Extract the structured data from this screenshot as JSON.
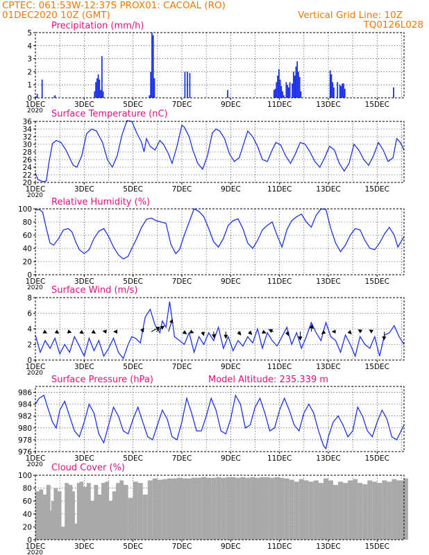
{
  "header": {
    "line1_left": "CPTEC:   061:53W-12:37S   PROX01: CACOAL (RO)",
    "line2_left": "01DEC2020 10Z (GMT)",
    "line2_right": "Vertical Grid Line: 10Z",
    "line3_right": "TQ0126L028"
  },
  "colors": {
    "title": "#e01080",
    "header": "#f07800",
    "series": "#1c32e6",
    "cloud": "#a9a9a9",
    "arrow": "#000000",
    "grid": "#000000"
  },
  "x_tick_labels": [
    "1DEC",
    "3DEC",
    "5DEC",
    "7DEC",
    "9DEC",
    "11DEC",
    "13DEC",
    "15DEC"
  ],
  "x_tick_year": "2020",
  "chart_data": [
    {
      "type": "bar",
      "title": "Precipitation (mm/h)",
      "ylim": [
        0,
        5
      ],
      "yticks": [
        0,
        1,
        2,
        3,
        4,
        5
      ],
      "x_unit": "days since 01DEC2020 10Z",
      "x": [
        0.0,
        0.05,
        0.25,
        0.75,
        0.78,
        2.4,
        2.45,
        2.5,
        2.55,
        2.6,
        2.65,
        2.7,
        2.75,
        4.65,
        4.7,
        4.75,
        4.8,
        4.85,
        6.1,
        6.2,
        6.3,
        7.85,
        9.75,
        9.8,
        9.85,
        9.9,
        9.95,
        10.0,
        10.05,
        10.1,
        10.15,
        10.25,
        10.3,
        10.35,
        10.4,
        10.5,
        10.55,
        10.6,
        10.65,
        10.7,
        10.75,
        10.8,
        10.85,
        12.05,
        12.1,
        12.15,
        12.2,
        12.35,
        12.45,
        12.5,
        12.55,
        12.6,
        12.65,
        14.65
      ],
      "values": [
        0.1,
        0.3,
        1.4,
        0.1,
        0.2,
        0.5,
        1.2,
        1.5,
        1.8,
        1.4,
        0.6,
        3.2,
        0.5,
        0.2,
        2.0,
        5.0,
        4.8,
        1.5,
        2.0,
        2.0,
        1.9,
        0.6,
        0.6,
        0.7,
        1.2,
        1.7,
        2.2,
        1.4,
        0.9,
        0.5,
        0.2,
        1.2,
        1.0,
        0.8,
        1.2,
        1.1,
        2.0,
        1.7,
        2.4,
        2.8,
        2.0,
        1.6,
        0.5,
        2.1,
        1.8,
        1.2,
        0.8,
        1.2,
        1.0,
        0.9,
        1.1,
        1.1,
        0.7,
        0.8
      ]
    },
    {
      "type": "line",
      "title": "Surface Temperature (nC)",
      "ylim": [
        20,
        36
      ],
      "yticks": [
        20,
        22,
        24,
        26,
        28,
        30,
        32,
        34,
        36
      ],
      "x_unit": "days since 01DEC2020 10Z",
      "x": [
        0.0,
        0.1,
        0.3,
        0.45,
        0.55,
        0.7,
        0.85,
        1.05,
        1.25,
        1.4,
        1.55,
        1.7,
        1.9,
        2.1,
        2.3,
        2.5,
        2.75,
        2.95,
        3.15,
        3.35,
        3.55,
        3.75,
        3.95,
        4.15,
        4.35,
        4.45,
        4.55,
        4.7,
        4.9,
        5.1,
        5.25,
        5.45,
        5.6,
        5.8,
        6.0,
        6.1,
        6.3,
        6.45,
        6.65,
        6.85,
        7.05,
        7.25,
        7.4,
        7.55,
        7.75,
        7.95,
        8.15,
        8.35,
        8.55,
        8.7,
        8.9,
        9.1,
        9.3,
        9.5,
        9.7,
        9.85,
        10.05,
        10.25,
        10.45,
        10.65,
        10.85,
        11.05,
        11.25,
        11.45,
        11.65,
        11.85,
        12.05,
        12.25,
        12.45,
        12.65,
        12.85,
        13.05,
        13.25,
        13.45,
        13.65,
        13.85,
        14.05,
        14.25,
        14.45,
        14.65,
        14.8,
        14.95,
        15.1
      ],
      "values": [
        22.5,
        20.8,
        20.2,
        20.4,
        25.0,
        30.2,
        31.0,
        30.5,
        28.5,
        26.5,
        24.5,
        24.0,
        27.0,
        32.8,
        34.0,
        33.5,
        30.5,
        26.0,
        24.0,
        27.0,
        32.5,
        36.2,
        36.0,
        33.0,
        30.5,
        28.0,
        31.5,
        29.5,
        28.5,
        31.0,
        30.0,
        27.5,
        25.0,
        29.5,
        35.0,
        34.5,
        32.0,
        28.5,
        25.0,
        23.5,
        27.0,
        33.0,
        34.0,
        33.5,
        31.5,
        27.5,
        25.5,
        26.5,
        30.5,
        33.5,
        32.0,
        29.5,
        26.0,
        25.5,
        28.5,
        30.5,
        29.8,
        27.0,
        25.0,
        27.5,
        30.5,
        30.0,
        28.0,
        25.5,
        24.0,
        26.5,
        29.5,
        28.5,
        25.0,
        23.0,
        25.0,
        30.0,
        28.5,
        26.0,
        24.5,
        27.0,
        30.5,
        28.5,
        25.5,
        26.5,
        31.5,
        30.5,
        28.5
      ]
    },
    {
      "type": "line",
      "title": "Relative Humidity (%)",
      "ylim": [
        0,
        100
      ],
      "yticks": [
        0,
        20,
        40,
        60,
        80,
        100
      ],
      "x_unit": "days since 01DEC2020 10Z",
      "x": [
        0.0,
        0.15,
        0.3,
        0.45,
        0.6,
        0.75,
        0.95,
        1.15,
        1.35,
        1.5,
        1.65,
        1.8,
        2.0,
        2.2,
        2.4,
        2.6,
        2.8,
        3.0,
        3.2,
        3.4,
        3.6,
        3.8,
        3.95,
        4.15,
        4.35,
        4.55,
        4.75,
        4.95,
        5.15,
        5.35,
        5.55,
        5.75,
        5.9,
        6.1,
        6.3,
        6.5,
        6.7,
        6.9,
        7.1,
        7.3,
        7.5,
        7.7,
        7.9,
        8.1,
        8.3,
        8.5,
        8.7,
        8.9,
        9.1,
        9.3,
        9.5,
        9.7,
        9.9,
        10.1,
        10.3,
        10.5,
        10.7,
        10.9,
        11.1,
        11.3,
        11.5,
        11.7,
        11.9,
        12.1,
        12.3,
        12.5,
        12.7,
        12.9,
        13.1,
        13.3,
        13.5,
        13.7,
        13.9,
        14.1,
        14.3,
        14.5,
        14.7,
        14.85,
        15.1
      ],
      "values": [
        98,
        99,
        95,
        70,
        48,
        45,
        55,
        68,
        70,
        65,
        50,
        38,
        32,
        38,
        55,
        66,
        70,
        58,
        42,
        30,
        24,
        28,
        40,
        55,
        72,
        84,
        86,
        82,
        80,
        78,
        46,
        32,
        38,
        60,
        80,
        100,
        96,
        88,
        70,
        50,
        42,
        55,
        75,
        82,
        85,
        70,
        48,
        40,
        52,
        68,
        75,
        80,
        60,
        42,
        68,
        82,
        88,
        92,
        80,
        72,
        90,
        100,
        99,
        70,
        48,
        35,
        45,
        60,
        70,
        68,
        52,
        40,
        38,
        48,
        62,
        72,
        60,
        42,
        58
      ]
    },
    {
      "type": "line",
      "title": "Surface Wind (m/s)",
      "ylim": [
        0,
        8
      ],
      "yticks": [
        0,
        2,
        4,
        6,
        8
      ],
      "x_unit": "days since 01DEC2020 10Z",
      "x": [
        0.0,
        0.2,
        0.4,
        0.6,
        0.8,
        1.0,
        1.2,
        1.4,
        1.6,
        1.8,
        2.0,
        2.2,
        2.4,
        2.6,
        2.8,
        3.0,
        3.2,
        3.4,
        3.6,
        3.8,
        3.95,
        4.1,
        4.3,
        4.5,
        4.7,
        4.9,
        5.1,
        5.2,
        5.35,
        5.5,
        5.7,
        5.9,
        6.1,
        6.3,
        6.5,
        6.7,
        6.9,
        7.1,
        7.3,
        7.5,
        7.7,
        7.9,
        8.1,
        8.3,
        8.5,
        8.7,
        8.9,
        9.1,
        9.3,
        9.5,
        9.7,
        9.9,
        10.1,
        10.3,
        10.5,
        10.7,
        10.9,
        11.1,
        11.3,
        11.5,
        11.7,
        11.9,
        12.1,
        12.3,
        12.5,
        12.7,
        12.9,
        13.1,
        13.3,
        13.5,
        13.7,
        13.9,
        14.1,
        14.3,
        14.5,
        14.7,
        14.9,
        15.1
      ],
      "values": [
        3.2,
        1.0,
        2.5,
        1.5,
        2.8,
        0.8,
        2.0,
        1.0,
        3.0,
        1.8,
        0.5,
        2.8,
        1.2,
        2.5,
        0.5,
        1.5,
        2.8,
        1.0,
        0.2,
        2.0,
        3.0,
        2.8,
        2.2,
        5.5,
        6.5,
        4.5,
        3.5,
        5.0,
        4.2,
        7.5,
        3.0,
        2.5,
        2.0,
        3.5,
        1.0,
        3.0,
        2.0,
        3.5,
        2.5,
        4.2,
        1.5,
        3.0,
        1.2,
        2.5,
        1.8,
        3.0,
        2.2,
        4.0,
        1.5,
        3.5,
        2.5,
        1.8,
        3.0,
        4.2,
        2.0,
        3.5,
        1.5,
        3.0,
        4.8,
        3.5,
        2.5,
        4.8,
        3.0,
        2.5,
        1.0,
        3.2,
        2.0,
        0.5,
        3.0,
        2.0,
        1.5,
        3.0,
        0.5,
        3.2,
        3.5,
        4.4,
        3.0,
        2.0
      ],
      "vectors": [
        {
          "x": 0.35,
          "u": 0.5,
          "v": -0.25
        },
        {
          "x": 0.85,
          "u": 0.45,
          "v": -0.3
        },
        {
          "x": 1.35,
          "u": 0.5,
          "v": -0.15
        },
        {
          "x": 1.85,
          "u": 0.5,
          "v": -0.35
        },
        {
          "x": 2.35,
          "u": 0.45,
          "v": -0.3
        },
        {
          "x": 2.9,
          "u": -0.55,
          "v": 0.1
        },
        {
          "x": 3.35,
          "u": -0.6,
          "v": 0.0
        },
        {
          "x": 4.35,
          "u": 0.4,
          "v": 0.6
        },
        {
          "x": 4.75,
          "u": 1.5,
          "v": 0.8
        },
        {
          "x": 4.95,
          "u": 1.4,
          "v": 1.0
        },
        {
          "x": 5.45,
          "u": 0.7,
          "v": 2.2
        },
        {
          "x": 6.05,
          "u": 0.6,
          "v": -0.4
        },
        {
          "x": 6.35,
          "u": 0.55,
          "v": -0.2
        },
        {
          "x": 6.85,
          "u": 0.2,
          "v": -0.7
        },
        {
          "x": 7.3,
          "u": 0.1,
          "v": -1.1
        },
        {
          "x": 7.8,
          "u": 0.0,
          "v": -1.2
        },
        {
          "x": 8.3,
          "u": 0.5,
          "v": -0.6
        },
        {
          "x": 8.75,
          "u": 0.5,
          "v": -0.5
        },
        {
          "x": 9.3,
          "u": 0.6,
          "v": -0.25
        },
        {
          "x": 9.75,
          "u": -0.8,
          "v": 0.35
        },
        {
          "x": 10.3,
          "u": 0.3,
          "v": -0.7
        },
        {
          "x": 10.85,
          "u": 0.0,
          "v": -1.5
        },
        {
          "x": 11.3,
          "u": 0.1,
          "v": 1.2
        },
        {
          "x": 11.85,
          "u": -0.5,
          "v": -0.4
        },
        {
          "x": 12.3,
          "u": -0.6,
          "v": 0.0
        },
        {
          "x": 12.85,
          "u": 0.4,
          "v": -0.4
        },
        {
          "x": 13.35,
          "u": -0.5,
          "v": 0.35
        },
        {
          "x": 13.8,
          "u": -0.5,
          "v": 0.3
        },
        {
          "x": 14.3,
          "u": -0.1,
          "v": -1.5
        }
      ]
    },
    {
      "type": "line",
      "title": "Surface Pressure (hPa)",
      "annotation": "Model Altitude: 235.339  m",
      "ylim": [
        976,
        987
      ],
      "yticks": [
        976,
        978,
        980,
        982,
        984,
        986
      ],
      "x_unit": "days since 01DEC2020 10Z",
      "x": [
        0.0,
        0.15,
        0.35,
        0.5,
        0.7,
        0.85,
        1.0,
        1.2,
        1.4,
        1.6,
        1.8,
        2.0,
        2.2,
        2.4,
        2.6,
        2.8,
        3.0,
        3.2,
        3.4,
        3.6,
        3.8,
        4.0,
        4.2,
        4.4,
        4.6,
        4.8,
        5.0,
        5.2,
        5.4,
        5.6,
        5.8,
        6.0,
        6.2,
        6.4,
        6.6,
        6.8,
        7.0,
        7.2,
        7.4,
        7.6,
        7.8,
        8.0,
        8.2,
        8.4,
        8.6,
        8.8,
        9.0,
        9.2,
        9.4,
        9.6,
        9.8,
        10.0,
        10.2,
        10.4,
        10.6,
        10.8,
        11.0,
        11.2,
        11.4,
        11.6,
        11.8,
        11.9,
        12.0,
        12.2,
        12.4,
        12.6,
        12.8,
        13.0,
        13.2,
        13.4,
        13.6,
        13.8,
        14.0,
        14.2,
        14.4,
        14.6,
        14.8,
        15.1
      ],
      "values": [
        984.0,
        985.0,
        985.5,
        983.5,
        981.0,
        980.0,
        983.0,
        984.5,
        982.0,
        979.5,
        978.5,
        981.0,
        984.0,
        982.5,
        979.0,
        977.5,
        980.5,
        983.5,
        982.0,
        979.5,
        979.0,
        981.5,
        983.5,
        981.0,
        978.5,
        978.0,
        980.5,
        983.0,
        981.5,
        978.5,
        978.0,
        981.0,
        985.0,
        982.5,
        979.5,
        979.5,
        982.0,
        985.0,
        983.0,
        979.5,
        979.0,
        981.5,
        985.5,
        984.0,
        980.0,
        980.5,
        983.5,
        985.0,
        982.5,
        979.5,
        980.0,
        983.0,
        985.0,
        983.0,
        980.5,
        979.5,
        982.5,
        984.0,
        982.5,
        979.5,
        977.0,
        976.5,
        978.5,
        981.0,
        982.0,
        980.5,
        978.5,
        979.5,
        983.5,
        982.0,
        979.5,
        978.5,
        981.0,
        983.0,
        981.5,
        978.5,
        978.0,
        980.5
      ]
    },
    {
      "type": "area",
      "title": "Cloud Cover (%)",
      "ylim": [
        0,
        100
      ],
      "yticks": [
        0,
        20,
        40,
        60,
        80,
        100
      ],
      "x_unit": "days since 01DEC2020 10Z",
      "x": [
        0.0,
        0.15,
        0.3,
        0.45,
        0.55,
        0.65,
        0.75,
        0.9,
        1.05,
        1.2,
        1.35,
        1.45,
        1.55,
        1.7,
        1.8,
        1.95,
        2.1,
        2.25,
        2.4,
        2.55,
        2.7,
        2.85,
        3.0,
        3.15,
        3.3,
        3.45,
        3.6,
        3.8,
        4.0,
        4.2,
        4.4,
        4.6,
        4.8,
        5.0,
        5.2,
        5.4,
        5.6,
        5.8,
        6.0,
        6.2,
        6.4,
        6.6,
        6.8,
        7.0,
        7.2,
        7.4,
        7.6,
        7.8,
        8.0,
        8.2,
        8.4,
        8.6,
        8.8,
        9.0,
        9.2,
        9.4,
        9.6,
        9.8,
        10.0,
        10.2,
        10.4,
        10.6,
        10.8,
        11.0,
        11.2,
        11.4,
        11.6,
        11.8,
        12.0,
        12.2,
        12.4,
        12.6,
        12.8,
        13.0,
        13.2,
        13.4,
        13.6,
        13.8,
        14.0,
        14.2,
        14.4,
        14.6,
        14.8,
        15.1
      ],
      "values": [
        75,
        78,
        70,
        85,
        45,
        60,
        80,
        75,
        20,
        88,
        85,
        75,
        25,
        88,
        90,
        82,
        88,
        60,
        85,
        70,
        88,
        90,
        60,
        75,
        88,
        92,
        85,
        65,
        90,
        88,
        70,
        92,
        95,
        93,
        94,
        95,
        95,
        96,
        95,
        95,
        96,
        96,
        97,
        96,
        96,
        97,
        96,
        97,
        97,
        96,
        97,
        96,
        97,
        96,
        97,
        97,
        96,
        97,
        96,
        95,
        93,
        90,
        94,
        92,
        90,
        92,
        88,
        95,
        92,
        85,
        90,
        88,
        92,
        94,
        88,
        86,
        92,
        90,
        88,
        92,
        90,
        94,
        92,
        95
      ]
    }
  ]
}
